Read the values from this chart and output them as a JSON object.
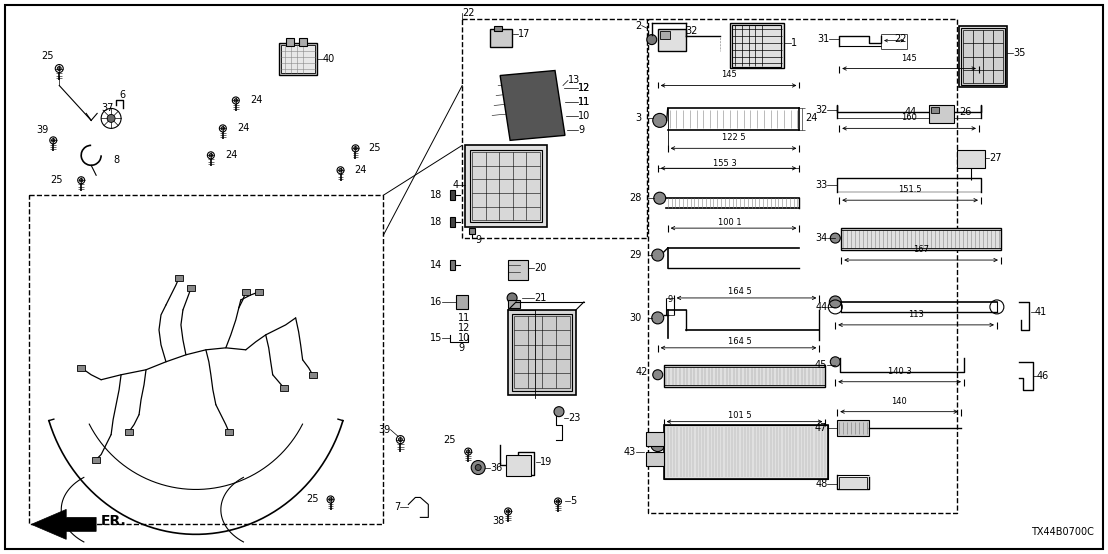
{
  "diagram_code": "TX44B0700C",
  "bg_color": "#ffffff",
  "text_color": "#000000",
  "figsize": [
    11.08,
    5.54
  ],
  "dpi": 100
}
